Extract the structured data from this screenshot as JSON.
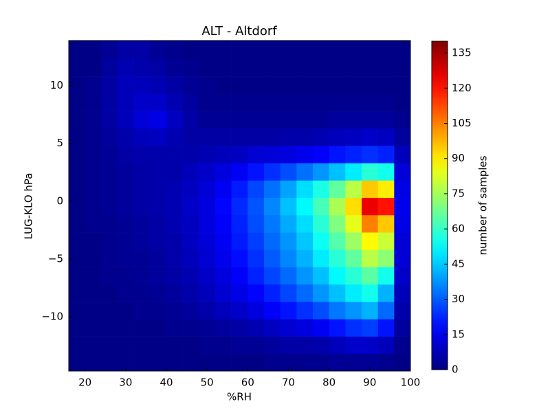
{
  "chart_data": {
    "type": "heatmap",
    "title": "ALT - Altdorf",
    "xlabel": "%RH",
    "ylabel": "LUG-KLO hPa",
    "colormap": "jet",
    "xlim": [
      16,
      100
    ],
    "ylim": [
      -14.7,
      13.9
    ],
    "xticks": [
      20,
      30,
      40,
      50,
      60,
      70,
      80,
      90,
      100
    ],
    "yticks": [
      {
        "value": -10,
        "label": "−10"
      },
      {
        "value": -5,
        "label": "−5"
      },
      0,
      5,
      10
    ],
    "xbins": [
      16,
      20,
      24,
      28,
      32,
      36,
      40,
      44,
      48,
      52,
      56,
      60,
      64,
      68,
      72,
      76,
      80,
      84,
      88,
      92,
      96,
      100
    ],
    "ybins": [
      -14.7,
      -13.2,
      -11.7,
      -10.2,
      -8.7,
      -7.2,
      -5.7,
      -4.2,
      -2.7,
      -1.2,
      0.3,
      1.8,
      3.3,
      4.8,
      6.3,
      7.8,
      9.3,
      10.8,
      12.3,
      13.9
    ],
    "z": [
      [
        1,
        1,
        1,
        1,
        1,
        1,
        1,
        1,
        1,
        1,
        1,
        1,
        2,
        2,
        2,
        2,
        3,
        3,
        3,
        2,
        1
      ],
      [
        1,
        1,
        1,
        1,
        1,
        1,
        1,
        1,
        2,
        2,
        3,
        3,
        4,
        5,
        5,
        6,
        8,
        10,
        10,
        8,
        2
      ],
      [
        1,
        1,
        1,
        1,
        1,
        1,
        2,
        2,
        3,
        4,
        5,
        7,
        9,
        11,
        13,
        16,
        20,
        24,
        26,
        20,
        4
      ],
      [
        1,
        1,
        1,
        1,
        2,
        2,
        3,
        4,
        6,
        8,
        10,
        13,
        17,
        20,
        24,
        28,
        34,
        38,
        42,
        32,
        6
      ],
      [
        1,
        1,
        1,
        2,
        2,
        3,
        4,
        6,
        8,
        11,
        14,
        18,
        22,
        27,
        32,
        38,
        44,
        50,
        55,
        42,
        8
      ],
      [
        1,
        1,
        2,
        2,
        3,
        4,
        5,
        7,
        10,
        13,
        17,
        22,
        27,
        32,
        38,
        44,
        52,
        58,
        65,
        55,
        10
      ],
      [
        1,
        1,
        2,
        3,
        3,
        4,
        6,
        8,
        11,
        15,
        19,
        24,
        30,
        36,
        42,
        50,
        58,
        66,
        78,
        72,
        12
      ],
      [
        1,
        1,
        2,
        3,
        4,
        5,
        6,
        9,
        12,
        16,
        21,
        26,
        32,
        38,
        45,
        54,
        64,
        74,
        88,
        80,
        12
      ],
      [
        1,
        2,
        2,
        3,
        4,
        5,
        7,
        9,
        13,
        17,
        22,
        28,
        34,
        41,
        48,
        58,
        70,
        84,
        105,
        95,
        14
      ],
      [
        1,
        2,
        3,
        4,
        5,
        6,
        7,
        10,
        13,
        18,
        23,
        29,
        36,
        44,
        52,
        62,
        76,
        92,
        125,
        120,
        15
      ],
      [
        1,
        2,
        3,
        4,
        5,
        6,
        7,
        9,
        12,
        16,
        21,
        27,
        33,
        40,
        48,
        56,
        66,
        78,
        95,
        90,
        14
      ],
      [
        1,
        2,
        3,
        4,
        5,
        6,
        6,
        8,
        10,
        13,
        16,
        20,
        24,
        28,
        33,
        38,
        44,
        50,
        58,
        55,
        12
      ],
      [
        1,
        2,
        3,
        5,
        6,
        6,
        6,
        6,
        7,
        8,
        9,
        11,
        12,
        13,
        15,
        17,
        20,
        22,
        24,
        22,
        8
      ],
      [
        1,
        2,
        4,
        6,
        8,
        9,
        7,
        5,
        5,
        5,
        5,
        5,
        5,
        6,
        6,
        7,
        8,
        9,
        10,
        9,
        4
      ],
      [
        1,
        2,
        5,
        8,
        12,
        14,
        9,
        5,
        3,
        3,
        3,
        3,
        3,
        3,
        3,
        3,
        4,
        4,
        4,
        4,
        2
      ],
      [
        1,
        2,
        5,
        8,
        10,
        10,
        7,
        4,
        2,
        2,
        2,
        2,
        2,
        2,
        2,
        2,
        2,
        2,
        2,
        2,
        1
      ],
      [
        1,
        2,
        5,
        8,
        8,
        7,
        5,
        3,
        2,
        1,
        1,
        1,
        1,
        1,
        1,
        1,
        1,
        1,
        1,
        1,
        1
      ],
      [
        1,
        1,
        4,
        7,
        6,
        5,
        3,
        2,
        1,
        1,
        1,
        1,
        1,
        1,
        1,
        1,
        1,
        1,
        1,
        1,
        1
      ],
      [
        1,
        1,
        3,
        5,
        5,
        3,
        2,
        1,
        1,
        1,
        1,
        1,
        1,
        1,
        1,
        1,
        1,
        1,
        1,
        1,
        1
      ]
    ],
    "colorbar": {
      "label": "number of samples",
      "lim": [
        0,
        140
      ],
      "ticks": [
        0,
        15,
        30,
        45,
        60,
        75,
        90,
        105,
        120,
        135
      ]
    }
  }
}
